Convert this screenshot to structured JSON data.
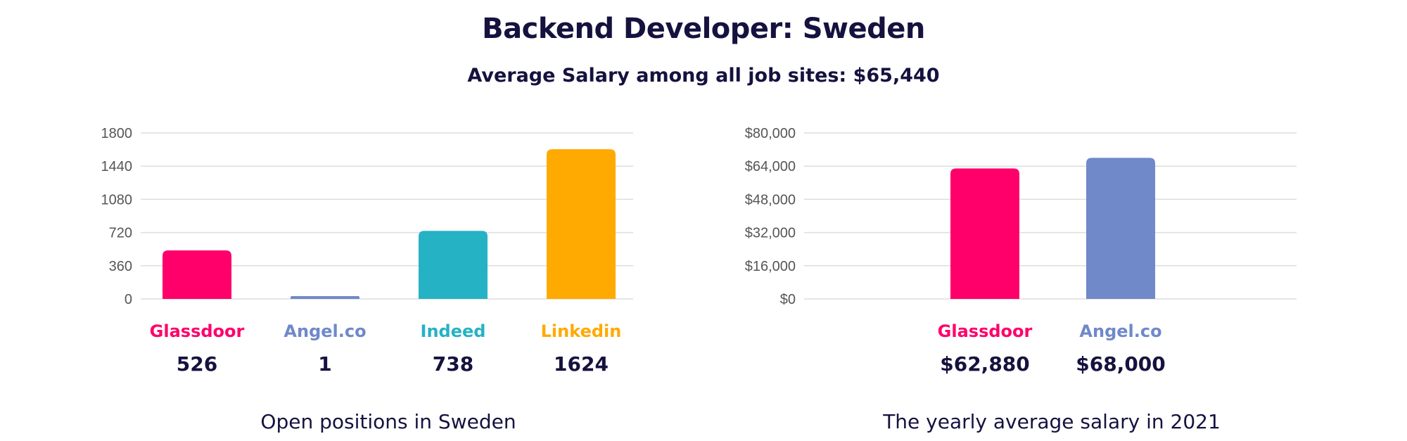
{
  "header": {
    "title": "Backend Developer: Sweden",
    "subtitle": "Average Salary among all job sites: $65,440"
  },
  "colors": {
    "Glassdoor": "#ff006b",
    "Angel.co": "#6f89c9",
    "Indeed": "#25b2c5",
    "Linkedin": "#ffaa00",
    "text": "#15123f",
    "grid": "#dddddd"
  },
  "chart_data": [
    {
      "type": "bar",
      "categories": [
        "Glassdoor",
        "Angel.co",
        "Indeed",
        "Linkedin"
      ],
      "values": [
        526,
        1,
        738,
        1624
      ],
      "value_labels": [
        "526",
        "1",
        "738",
        "1624"
      ],
      "yticks": [
        "0",
        "360",
        "720",
        "1080",
        "1440",
        "1800"
      ],
      "ylim": [
        0,
        1800
      ],
      "caption": "Open positions in Sweden",
      "grid": true
    },
    {
      "type": "bar",
      "categories": [
        "Glassdoor",
        "Angel.co"
      ],
      "values": [
        62880,
        68000
      ],
      "value_labels": [
        "$62,880",
        "$68,000"
      ],
      "yticks": [
        "$0",
        "$16,000",
        "$32,000",
        "$48,000",
        "$64,000",
        "$80,000"
      ],
      "ylim": [
        0,
        80000
      ],
      "caption": "The yearly average salary in 2021",
      "grid": true
    }
  ]
}
